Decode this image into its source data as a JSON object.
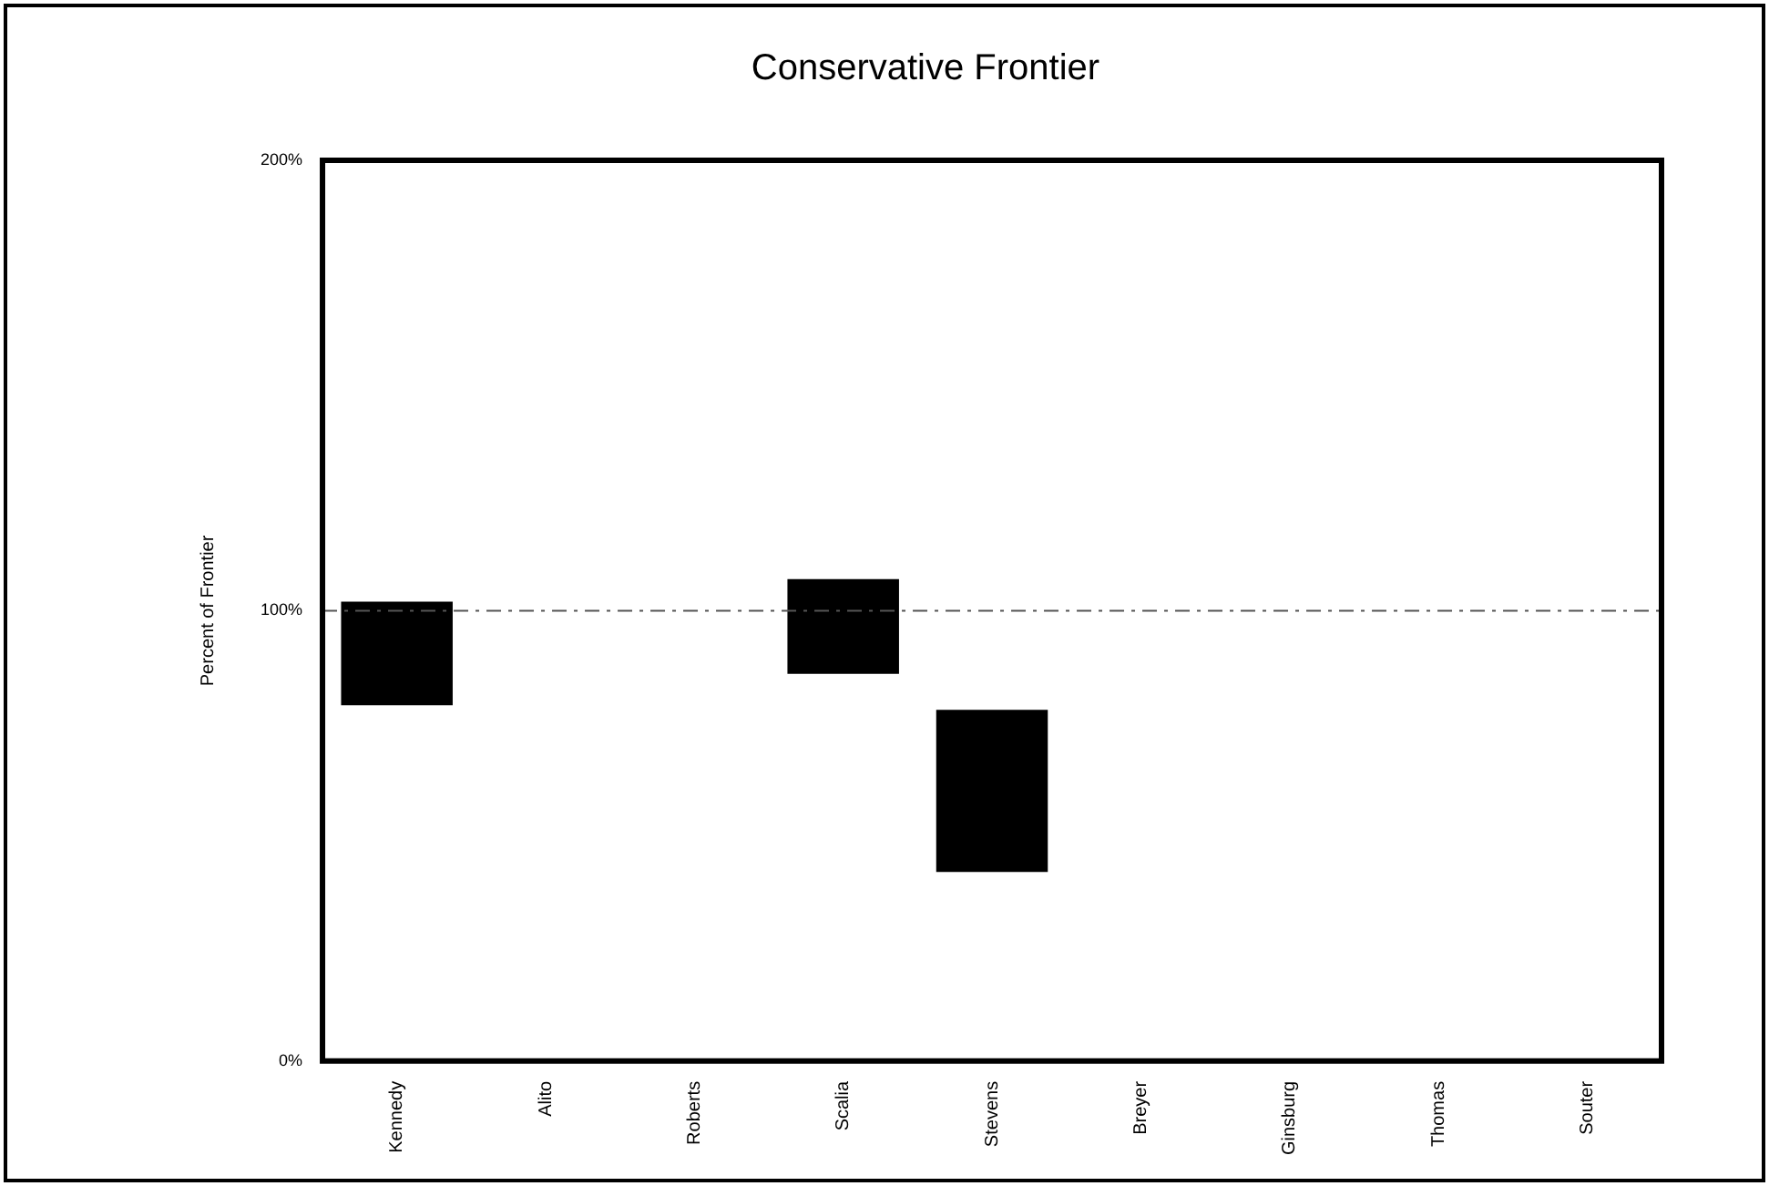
{
  "chart_data": {
    "type": "bar",
    "title": "Conservative Frontier",
    "ylabel": "Percent of Frontier",
    "categories": [
      "Kennedy",
      "Alito",
      "Roberts",
      "Scalia",
      "Stevens",
      "Breyer",
      "Ginsburg",
      "Thomas",
      "Souter"
    ],
    "values": [
      23,
      null,
      null,
      21,
      36,
      null,
      null,
      null,
      null
    ],
    "base": [
      79,
      null,
      null,
      86,
      42,
      null,
      null,
      null,
      null
    ],
    "color": "#000000",
    "ylim": [
      0,
      200
    ],
    "yticks": [
      {
        "value": 0,
        "label": "0%"
      },
      {
        "value": 100,
        "label": "100%"
      },
      {
        "value": 200,
        "label": "200%"
      }
    ],
    "ref_lines": [
      {
        "axis": "y",
        "value": 100,
        "color": "#555555",
        "line_style": "dashdot"
      }
    ],
    "grid": false,
    "legend": false
  }
}
